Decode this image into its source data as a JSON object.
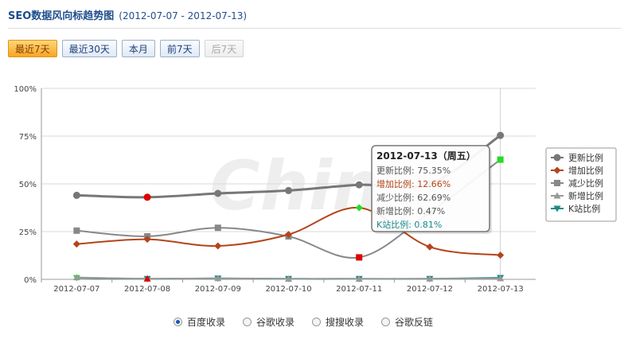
{
  "header": {
    "title": "SEO数据风向标趋势图",
    "range": "(2012-07-07 - 2012-07-13)"
  },
  "buttons": [
    {
      "label": "最近7天",
      "state": "active"
    },
    {
      "label": "最近30天",
      "state": "normal"
    },
    {
      "label": "本月",
      "state": "normal"
    },
    {
      "label": "前7天",
      "state": "normal"
    },
    {
      "label": "后7天",
      "state": "disabled"
    }
  ],
  "radios": [
    {
      "label": "百度收录",
      "checked": true
    },
    {
      "label": "谷歌收录",
      "checked": false
    },
    {
      "label": "搜搜收录",
      "checked": false
    },
    {
      "label": "谷歌反链",
      "checked": false
    }
  ],
  "chart_data": {
    "type": "line",
    "x": [
      "2012-07-07",
      "2012-07-08",
      "2012-07-09",
      "2012-07-10",
      "2012-07-11",
      "2012-07-12",
      "2012-07-13"
    ],
    "ylim": [
      0,
      100
    ],
    "yticks": [
      "0%",
      "25%",
      "50%",
      "75%",
      "100%"
    ],
    "grid": true,
    "legend_position": "right",
    "watermark": "China",
    "series": [
      {
        "name": "更新比例",
        "color": "#777777",
        "marker": "circle",
        "values": [
          44,
          43,
          45,
          46.5,
          49.5,
          50,
          75.35
        ]
      },
      {
        "name": "增加比例",
        "color": "#b5441a",
        "marker": "diamond",
        "values": [
          18.5,
          21,
          17.5,
          23.5,
          37.5,
          17,
          12.66
        ]
      },
      {
        "name": "减少比例",
        "color": "#888888",
        "marker": "square",
        "values": [
          25.5,
          22.5,
          27,
          22.5,
          11.5,
          35,
          62.69
        ]
      },
      {
        "name": "新增比例",
        "color": "#999999",
        "marker": "triangle",
        "values": [
          1,
          0.3,
          0.5,
          0.2,
          0.2,
          0.3,
          0.47
        ]
      },
      {
        "name": "K站比例",
        "color": "#1a8a8a",
        "marker": "triangle-down",
        "values": [
          0.8,
          0.3,
          0.5,
          0.3,
          0.3,
          0.3,
          0.81
        ]
      }
    ],
    "highlight_points": [
      {
        "series": 0,
        "index": 1,
        "color": "#e00000"
      },
      {
        "series": 2,
        "index": 4,
        "color": "#e00000"
      },
      {
        "series": 1,
        "index": 4,
        "color": "#22dd22"
      },
      {
        "series": 2,
        "index": 6,
        "color": "#22dd22"
      },
      {
        "series": 4,
        "index": 0,
        "color": "#22dd22"
      },
      {
        "series": 3,
        "index": 1,
        "color": "#e00000"
      }
    ],
    "tooltip": {
      "title": "2012-07-13（周五）",
      "rows": [
        {
          "text": "更新比例: 75.35%",
          "color": "#555555"
        },
        {
          "text": "增加比例: 12.66%",
          "color": "#b5441a"
        },
        {
          "text": "减少比例: 62.69%",
          "color": "#555555"
        },
        {
          "text": "新增比例: 0.47%",
          "color": "#555555"
        },
        {
          "text": "K站比例: 0.81%",
          "color": "#1a8a8a"
        }
      ]
    }
  }
}
